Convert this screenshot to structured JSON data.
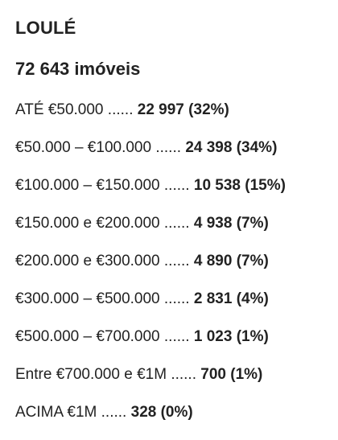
{
  "region": "LOULÉ",
  "total": "72 643 imóveis",
  "dots": "......",
  "rows": [
    {
      "range": "ATÉ €50.000",
      "count": "22 997",
      "pct": "(32%)"
    },
    {
      "range": "€50.000 – €100.000",
      "count": "24 398",
      "pct": "(34%)"
    },
    {
      "range": "€100.000 – €150.000",
      "count": "10 538",
      "pct": "(15%)"
    },
    {
      "range": "€150.000 e €200.000",
      "count": "4 938",
      "pct": "(7%)"
    },
    {
      "range": "€200.000 e €300.000",
      "count": "4 890",
      "pct": "(7%)"
    },
    {
      "range": "€300.000 – €500.000",
      "count": "2 831",
      "pct": "(4%)"
    },
    {
      "range": "€500.000 – €700.000",
      "count": "1 023",
      "pct": "(1%)"
    },
    {
      "range": "Entre €700.000 e €1M",
      "count": "700",
      "pct": "(1%)"
    },
    {
      "range": "ACIMA €1M",
      "count": "328",
      "pct": "(0%)"
    }
  ]
}
